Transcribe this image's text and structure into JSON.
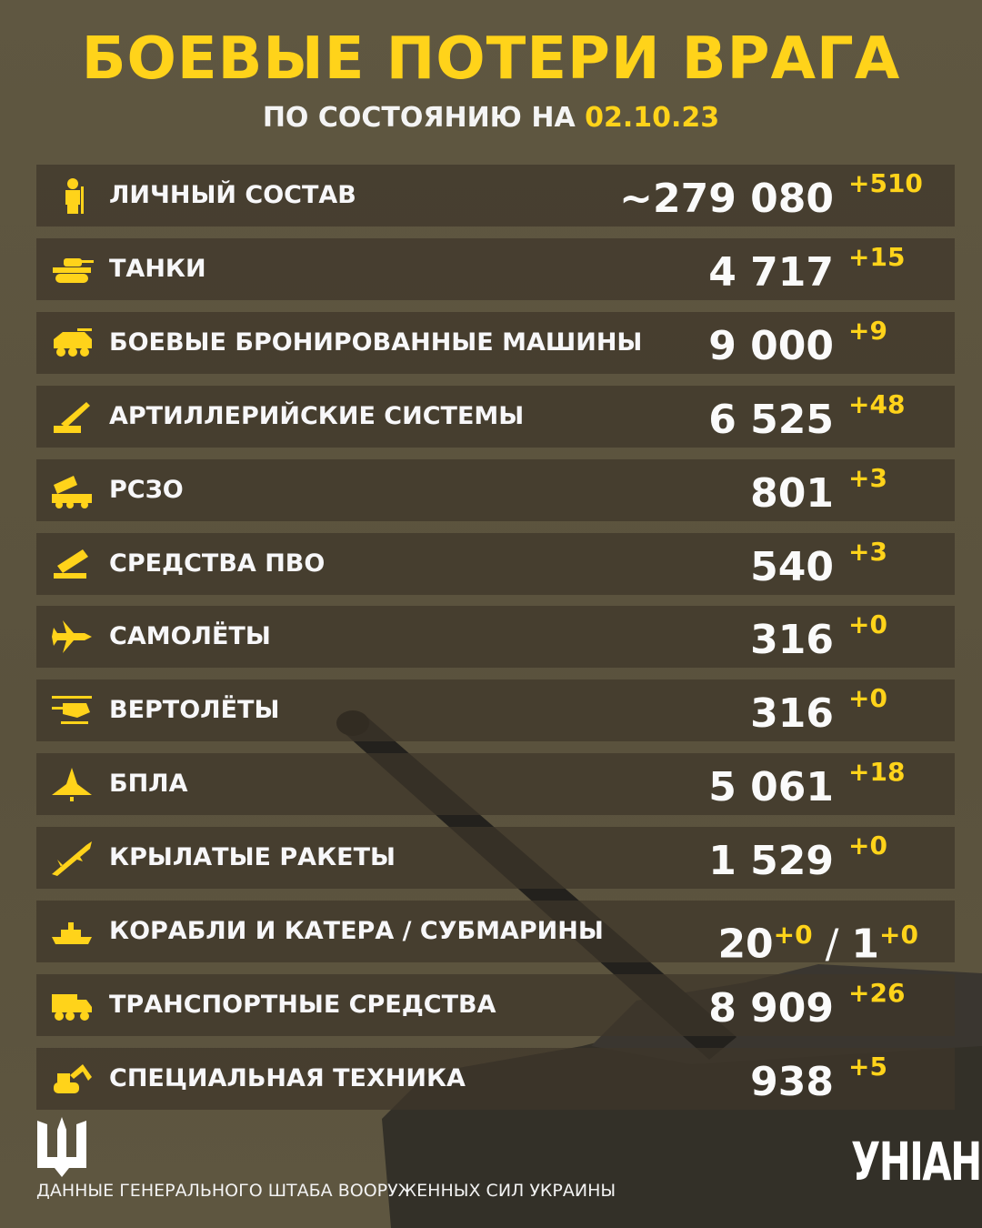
{
  "title": "БОЕВЫЕ ПОТЕРИ ВРАГА",
  "subtitle": {
    "prefix": "ПО СОСТОЯНИЮ НА",
    "date": "02.10.23"
  },
  "accent_color": "#ffd31a",
  "rows": [
    {
      "icon": "soldier-icon",
      "label": "ЛИЧНЫЙ СОСТАВ",
      "value": "~279 080",
      "delta": "+510"
    },
    {
      "icon": "tank-icon",
      "label": "ТАНКИ",
      "value": "4 717",
      "delta": "+15"
    },
    {
      "icon": "armored-vehicle-icon",
      "label": "БОЕВЫЕ БРОНИРОВАННЫЕ МАШИНЫ",
      "value": "9 000",
      "delta": "+9"
    },
    {
      "icon": "artillery-icon",
      "label": "АРТИЛЛЕРИЙСКИЕ СИСТЕМЫ",
      "value": "6 525",
      "delta": "+48"
    },
    {
      "icon": "mlrs-icon",
      "label": "РСЗО",
      "value": "801",
      "delta": "+3"
    },
    {
      "icon": "air-defense-icon",
      "label": "СРЕДСТВА ПВО",
      "value": "540",
      "delta": "+3"
    },
    {
      "icon": "plane-icon",
      "label": "САМОЛЁТЫ",
      "value": "316",
      "delta": "+0"
    },
    {
      "icon": "helicopter-icon",
      "label": "ВЕРТОЛЁТЫ",
      "value": "316",
      "delta": "+0"
    },
    {
      "icon": "drone-icon",
      "label": "БПЛА",
      "value": "5 061",
      "delta": "+18"
    },
    {
      "icon": "missile-icon",
      "label": "КРЫЛАТЫЕ РАКЕТЫ",
      "value": "1 529",
      "delta": "+0"
    },
    {
      "icon": "ship-icon",
      "label": "КОРАБЛИ И КАТЕРА / СУБМАРИНЫ",
      "value": "20",
      "delta": "+0",
      "value2": "1",
      "delta2": "+0"
    },
    {
      "icon": "truck-icon",
      "label": "ТРАНСПОРТНЫЕ СРЕДСТВА",
      "value": "8 909",
      "delta": "+26"
    },
    {
      "icon": "excavator-icon",
      "label": "СПЕЦИАЛЬНАЯ ТЕХНИКА",
      "value": "938",
      "delta": "+5"
    }
  ],
  "footer": "ДАННЫЕ ГЕНЕРАЛЬНОГО ШТАБА ВООРУЖЕННЫХ СИЛ УКРАИНЫ",
  "logo": "УНІАН"
}
